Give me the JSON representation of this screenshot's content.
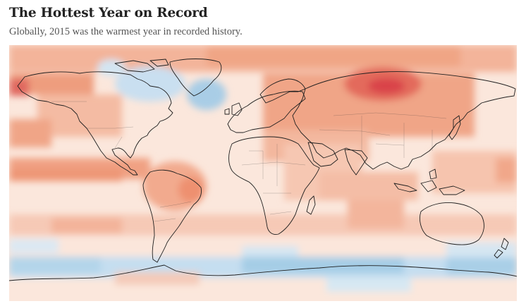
{
  "article": {
    "headline": "The Hottest Year on Record",
    "dek": "Globally, 2015 was the warmest year in recorded history."
  },
  "map": {
    "projection": "equirectangular world map",
    "colors": {
      "background": "#fbe7dc",
      "strong_warm": "#d9434a",
      "warm": "#ee9373",
      "mild_warm": "#f6c4ad",
      "cool": "#c5def0",
      "cold": "#9cc8e3"
    }
  }
}
